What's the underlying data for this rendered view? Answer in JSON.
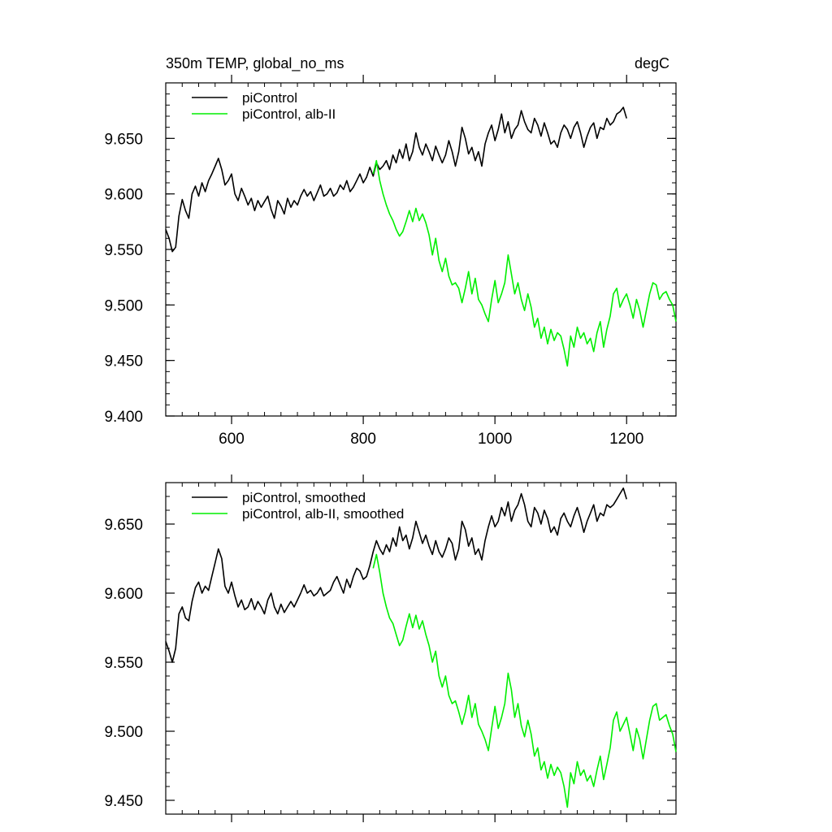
{
  "chart_data": [
    {
      "type": "line",
      "title": "350m TEMP, global_no_ms",
      "units": "degC",
      "xlim": [
        500,
        1275
      ],
      "ylim": [
        9.4,
        9.7
      ],
      "xticks": [
        600,
        800,
        1000,
        1200
      ],
      "xtick_labels": [
        "600",
        "800",
        "1000",
        "1200"
      ],
      "yticks": [
        9.4,
        9.45,
        9.5,
        9.55,
        9.6,
        9.65
      ],
      "ytick_labels": [
        "9.400",
        "9.450",
        "9.500",
        "9.550",
        "9.600",
        "9.650"
      ],
      "legend_position": "top-left",
      "series": [
        {
          "name": "piControl",
          "color": "#000000",
          "x": [
            500,
            505,
            510,
            515,
            520,
            525,
            530,
            535,
            540,
            545,
            550,
            555,
            560,
            565,
            570,
            575,
            580,
            585,
            590,
            595,
            600,
            605,
            610,
            615,
            620,
            625,
            630,
            635,
            640,
            645,
            650,
            655,
            660,
            665,
            670,
            675,
            680,
            685,
            690,
            695,
            700,
            705,
            710,
            715,
            720,
            725,
            730,
            735,
            740,
            745,
            750,
            755,
            760,
            765,
            770,
            775,
            780,
            785,
            790,
            795,
            800,
            805,
            810,
            815,
            820,
            825,
            830,
            835,
            840,
            845,
            850,
            855,
            860,
            865,
            870,
            875,
            880,
            885,
            890,
            895,
            900,
            905,
            910,
            915,
            920,
            925,
            930,
            935,
            940,
            945,
            950,
            955,
            960,
            965,
            970,
            975,
            980,
            985,
            990,
            995,
            1000,
            1005,
            1010,
            1015,
            1020,
            1025,
            1030,
            1035,
            1040,
            1045,
            1050,
            1055,
            1060,
            1065,
            1070,
            1075,
            1080,
            1085,
            1090,
            1095,
            1100,
            1105,
            1110,
            1115,
            1120,
            1125,
            1130,
            1135,
            1140,
            1145,
            1150,
            1155,
            1160,
            1165,
            1170,
            1175,
            1180,
            1185,
            1190,
            1195,
            1200
          ],
          "values": [
            9.568,
            9.56,
            9.548,
            9.552,
            9.58,
            9.595,
            9.585,
            9.578,
            9.6,
            9.607,
            9.598,
            9.61,
            9.602,
            9.612,
            9.618,
            9.625,
            9.632,
            9.622,
            9.608,
            9.612,
            9.618,
            9.6,
            9.594,
            9.605,
            9.598,
            9.59,
            9.596,
            9.585,
            9.594,
            9.588,
            9.593,
            9.598,
            9.586,
            9.578,
            9.594,
            9.589,
            9.582,
            9.596,
            9.588,
            9.594,
            9.59,
            9.598,
            9.604,
            9.598,
            9.602,
            9.594,
            9.601,
            9.608,
            9.598,
            9.6,
            9.605,
            9.598,
            9.601,
            9.608,
            9.604,
            9.612,
            9.602,
            9.606,
            9.612,
            9.618,
            9.61,
            9.615,
            9.624,
            9.616,
            9.628,
            9.622,
            9.625,
            9.63,
            9.622,
            9.635,
            9.628,
            9.64,
            9.632,
            9.645,
            9.63,
            9.638,
            9.655,
            9.642,
            9.635,
            9.645,
            9.638,
            9.63,
            9.643,
            9.635,
            9.628,
            9.635,
            9.648,
            9.638,
            9.625,
            9.638,
            9.66,
            9.65,
            9.636,
            9.642,
            9.63,
            9.638,
            9.625,
            9.645,
            9.655,
            9.662,
            9.648,
            9.658,
            9.672,
            9.655,
            9.665,
            9.65,
            9.658,
            9.662,
            9.675,
            9.665,
            9.658,
            9.655,
            9.668,
            9.662,
            9.652,
            9.664,
            9.655,
            9.645,
            9.648,
            9.642,
            9.655,
            9.662,
            9.658,
            9.65,
            9.66,
            9.665,
            9.655,
            9.642,
            9.652,
            9.66,
            9.664,
            9.65,
            9.66,
            9.658,
            9.668,
            9.662,
            9.665,
            9.672,
            9.674,
            9.678,
            9.668
          ]
        },
        {
          "name": "piControl, alb-II",
          "color": "#00ee00",
          "x": [
            815,
            820,
            825,
            830,
            835,
            840,
            845,
            850,
            855,
            860,
            865,
            870,
            875,
            880,
            885,
            890,
            895,
            900,
            905,
            910,
            915,
            920,
            925,
            930,
            935,
            940,
            945,
            950,
            955,
            960,
            965,
            970,
            975,
            980,
            985,
            990,
            995,
            1000,
            1005,
            1010,
            1015,
            1020,
            1025,
            1030,
            1035,
            1040,
            1045,
            1050,
            1055,
            1060,
            1065,
            1070,
            1075,
            1080,
            1085,
            1090,
            1095,
            1100,
            1105,
            1110,
            1115,
            1120,
            1125,
            1130,
            1135,
            1140,
            1145,
            1150,
            1155,
            1160,
            1165,
            1170,
            1175,
            1180,
            1185,
            1190,
            1195,
            1200,
            1205,
            1210,
            1215,
            1220,
            1225,
            1230,
            1235,
            1240,
            1245,
            1250,
            1255,
            1260,
            1265,
            1270,
            1275
          ],
          "values": [
            9.618,
            9.63,
            9.612,
            9.6,
            9.59,
            9.582,
            9.576,
            9.568,
            9.562,
            9.566,
            9.575,
            9.585,
            9.575,
            9.587,
            9.576,
            9.582,
            9.574,
            9.563,
            9.545,
            9.56,
            9.54,
            9.53,
            9.542,
            9.526,
            9.518,
            9.52,
            9.515,
            9.502,
            9.515,
            9.53,
            9.51,
            9.524,
            9.505,
            9.5,
            9.492,
            9.485,
            9.505,
            9.522,
            9.502,
            9.51,
            9.52,
            9.545,
            9.528,
            9.51,
            9.52,
            9.505,
            9.495,
            9.51,
            9.498,
            9.48,
            9.488,
            9.47,
            9.48,
            9.465,
            9.478,
            9.468,
            9.475,
            9.472,
            9.46,
            9.445,
            9.472,
            9.462,
            9.48,
            9.47,
            9.475,
            9.465,
            9.47,
            9.458,
            9.475,
            9.485,
            9.462,
            9.478,
            9.49,
            9.51,
            9.515,
            9.498,
            9.505,
            9.51,
            9.5,
            9.488,
            9.505,
            9.495,
            9.48,
            9.495,
            9.51,
            9.52,
            9.518,
            9.505,
            9.51,
            9.512,
            9.505,
            9.5,
            9.485
          ]
        }
      ]
    },
    {
      "type": "line",
      "title": "",
      "xlim": [
        500,
        1275
      ],
      "ylim": [
        9.44,
        9.68
      ],
      "xticks": [
        600,
        800,
        1000,
        1200
      ],
      "yticks": [
        9.45,
        9.5,
        9.55,
        9.6,
        9.65
      ],
      "ytick_labels": [
        "9.450",
        "9.500",
        "9.550",
        "9.600",
        "9.650"
      ],
      "legend_position": "top-left",
      "series": [
        {
          "name": "piControl, smoothed",
          "color": "#000000",
          "x": [
            500,
            505,
            510,
            515,
            520,
            525,
            530,
            535,
            540,
            545,
            550,
            555,
            560,
            565,
            570,
            575,
            580,
            585,
            590,
            595,
            600,
            605,
            610,
            615,
            620,
            625,
            630,
            635,
            640,
            645,
            650,
            655,
            660,
            665,
            670,
            675,
            680,
            685,
            690,
            695,
            700,
            705,
            710,
            715,
            720,
            725,
            730,
            735,
            740,
            745,
            750,
            755,
            760,
            765,
            770,
            775,
            780,
            785,
            790,
            795,
            800,
            805,
            810,
            815,
            820,
            825,
            830,
            835,
            840,
            845,
            850,
            855,
            860,
            865,
            870,
            875,
            880,
            885,
            890,
            895,
            900,
            905,
            910,
            915,
            920,
            925,
            930,
            935,
            940,
            945,
            950,
            955,
            960,
            965,
            970,
            975,
            980,
            985,
            990,
            995,
            1000,
            1005,
            1010,
            1015,
            1020,
            1025,
            1030,
            1035,
            1040,
            1045,
            1050,
            1055,
            1060,
            1065,
            1070,
            1075,
            1080,
            1085,
            1090,
            1095,
            1100,
            1105,
            1110,
            1115,
            1120,
            1125,
            1130,
            1135,
            1140,
            1145,
            1150,
            1155,
            1160,
            1165,
            1170,
            1175,
            1180,
            1185,
            1190,
            1195,
            1200
          ],
          "values": [
            9.565,
            9.558,
            9.55,
            9.56,
            9.585,
            9.59,
            9.582,
            9.58,
            9.594,
            9.604,
            9.608,
            9.6,
            9.605,
            9.602,
            9.612,
            9.622,
            9.632,
            9.625,
            9.605,
            9.6,
            9.608,
            9.598,
            9.59,
            9.595,
            9.588,
            9.59,
            9.596,
            9.588,
            9.594,
            9.59,
            9.585,
            9.595,
            9.6,
            9.59,
            9.585,
            9.592,
            9.586,
            9.59,
            9.594,
            9.59,
            9.595,
            9.6,
            9.606,
            9.6,
            9.602,
            9.598,
            9.6,
            9.604,
            9.598,
            9.6,
            9.602,
            9.608,
            9.612,
            9.606,
            9.6,
            9.61,
            9.604,
            9.612,
            9.618,
            9.616,
            9.61,
            9.612,
            9.62,
            9.63,
            9.638,
            9.632,
            9.628,
            9.635,
            9.63,
            9.64,
            9.634,
            9.648,
            9.638,
            9.642,
            9.632,
            9.64,
            9.652,
            9.644,
            9.636,
            9.642,
            9.634,
            9.628,
            9.638,
            9.63,
            9.626,
            9.632,
            9.64,
            9.636,
            9.624,
            9.632,
            9.652,
            9.646,
            9.634,
            9.64,
            9.628,
            9.632,
            9.624,
            9.638,
            9.648,
            9.656,
            9.648,
            9.652,
            9.662,
            9.656,
            9.666,
            9.652,
            9.66,
            9.664,
            9.672,
            9.664,
            9.652,
            9.648,
            9.662,
            9.658,
            9.65,
            9.66,
            9.654,
            9.644,
            9.648,
            9.642,
            9.654,
            9.658,
            9.652,
            9.648,
            9.656,
            9.662,
            9.654,
            9.644,
            9.652,
            9.658,
            9.664,
            9.652,
            9.658,
            9.656,
            9.664,
            9.662,
            9.664,
            9.668,
            9.672,
            9.676,
            9.668
          ]
        },
        {
          "name": "piControl, alb-II, smoothed",
          "color": "#00ee00",
          "x": [
            815,
            820,
            825,
            830,
            835,
            840,
            845,
            850,
            855,
            860,
            865,
            870,
            875,
            880,
            885,
            890,
            895,
            900,
            905,
            910,
            915,
            920,
            925,
            930,
            935,
            940,
            945,
            950,
            955,
            960,
            965,
            970,
            975,
            980,
            985,
            990,
            995,
            1000,
            1005,
            1010,
            1015,
            1020,
            1025,
            1030,
            1035,
            1040,
            1045,
            1050,
            1055,
            1060,
            1065,
            1070,
            1075,
            1080,
            1085,
            1090,
            1095,
            1100,
            1105,
            1110,
            1115,
            1120,
            1125,
            1130,
            1135,
            1140,
            1145,
            1150,
            1155,
            1160,
            1165,
            1170,
            1175,
            1180,
            1185,
            1190,
            1195,
            1200,
            1205,
            1210,
            1215,
            1220,
            1225,
            1230,
            1235,
            1240,
            1245,
            1250,
            1255,
            1260,
            1265,
            1270,
            1275
          ],
          "values": [
            9.618,
            9.628,
            9.615,
            9.6,
            9.59,
            9.582,
            9.578,
            9.57,
            9.562,
            9.566,
            9.576,
            9.585,
            9.575,
            9.584,
            9.574,
            9.58,
            9.57,
            9.562,
            9.55,
            9.558,
            9.54,
            9.532,
            9.54,
            9.526,
            9.52,
            9.522,
            9.514,
            9.505,
            9.514,
            9.526,
            9.51,
            9.52,
            9.505,
            9.5,
            9.494,
            9.486,
            9.502,
            9.518,
            9.502,
            9.51,
            9.52,
            9.542,
            9.53,
            9.51,
            9.52,
            9.504,
            9.496,
            9.508,
            9.498,
            9.482,
            9.488,
            9.472,
            9.478,
            9.466,
            9.476,
            9.468,
            9.474,
            9.47,
            9.46,
            9.445,
            9.47,
            9.462,
            9.478,
            9.468,
            9.472,
            9.464,
            9.468,
            9.46,
            9.472,
            9.482,
            9.465,
            9.476,
            9.488,
            9.508,
            9.514,
            9.5,
            9.505,
            9.51,
            9.498,
            9.486,
            9.502,
            9.494,
            9.48,
            9.494,
            9.508,
            9.518,
            9.52,
            9.508,
            9.51,
            9.512,
            9.504,
            9.498,
            9.485
          ]
        }
      ]
    }
  ]
}
